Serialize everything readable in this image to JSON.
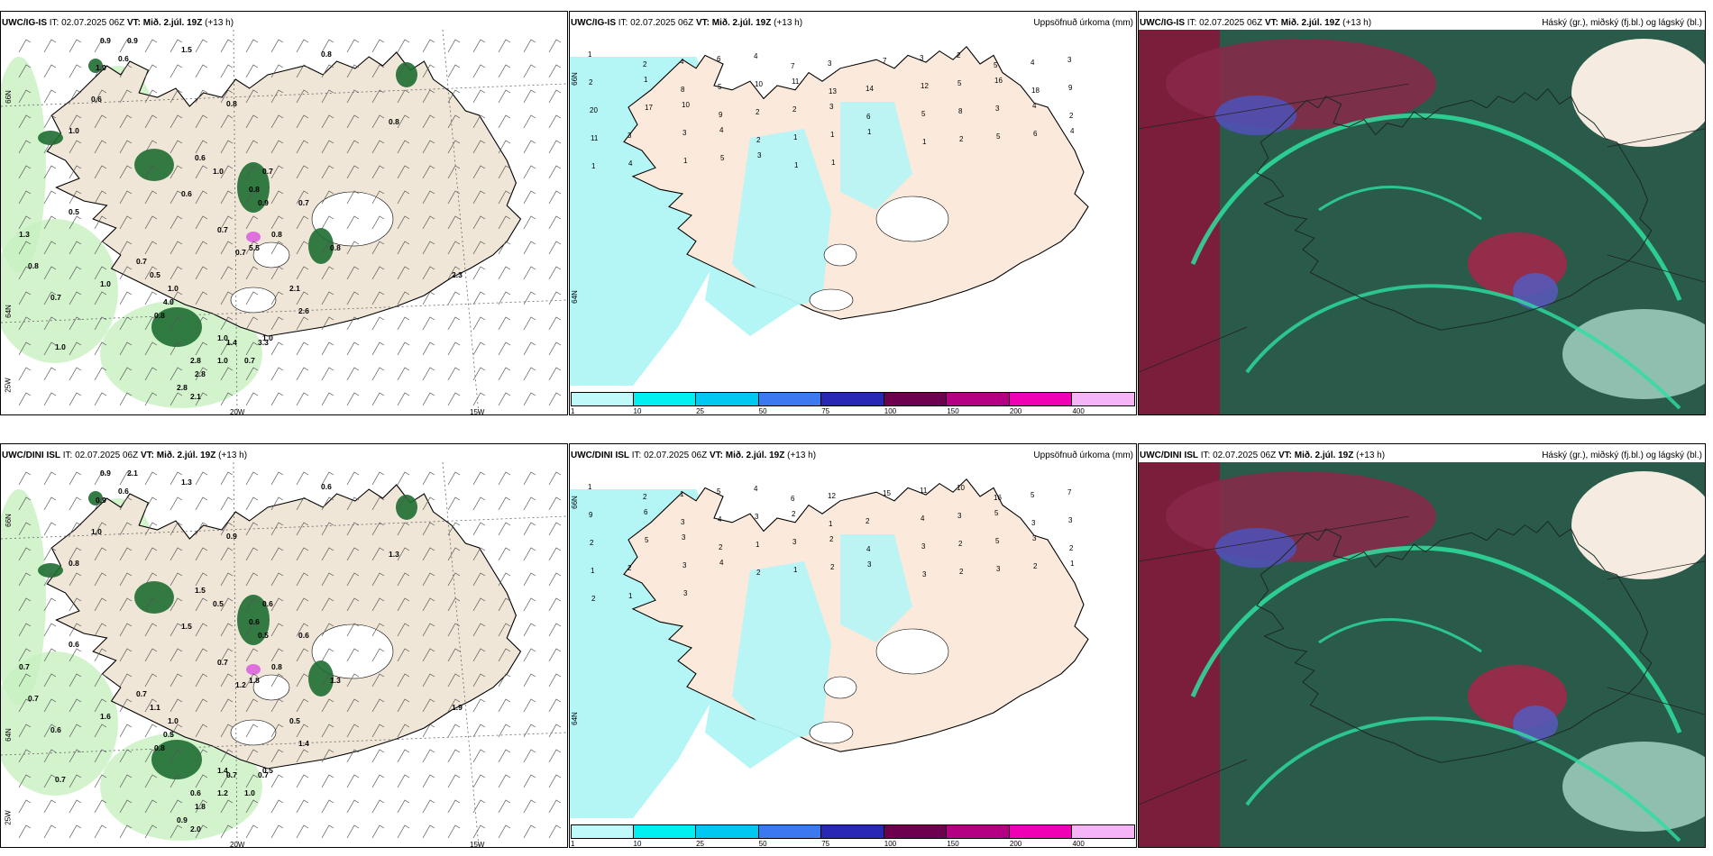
{
  "panels": [
    {
      "model": "UWC/IG-IS",
      "it": "IT: 02.07.2025 06Z",
      "vt_label": "VT:",
      "vt": "Mið. 2.júl. 19Z",
      "lead": "(+13 h)",
      "right": ""
    },
    {
      "model": "UWC/IG-IS",
      "it": "IT: 02.07.2025 06Z",
      "vt_label": "VT:",
      "vt": "Mið. 2.júl. 19Z",
      "lead": "(+13 h)",
      "right": "Uppsöfnuð úrkoma (mm)"
    },
    {
      "model": "UWC/IG-IS",
      "it": "IT: 02.07.2025 06Z",
      "vt_label": "VT:",
      "vt": "Mið. 2.júl. 19Z",
      "lead": "(+13 h)",
      "right": "Háský (gr.), miðský (fj.bl.) og lágský (bl.)"
    },
    {
      "model": "UWC/DINI ISL",
      "it": "IT: 02.07.2025 06Z",
      "vt_label": "VT:",
      "vt": "Mið. 2.júl. 19Z",
      "lead": "(+13 h)",
      "right": ""
    },
    {
      "model": "UWC/DINI ISL",
      "it": "IT: 02.07.2025 06Z",
      "vt_label": "VT:",
      "vt": "Mið. 2.júl. 19Z",
      "lead": "(+13 h)",
      "right": "Uppsöfnuð úrkoma (mm)"
    },
    {
      "model": "UWC/DINI ISL",
      "it": "IT: 02.07.2025 06Z",
      "vt_label": "VT:",
      "vt": "Mið. 2.júl. 19Z",
      "lead": "(+13 h)",
      "right": "Háský (gr.), miðský (fj.bl.) og lágský (bl.)"
    }
  ],
  "axes": {
    "lat66": "66N",
    "lat64": "64N",
    "lon25": "25W",
    "lon20": "20W",
    "lon15": "15W"
  },
  "colorbar": {
    "ticks": [
      "1",
      "10",
      "25",
      "50",
      "75",
      "100",
      "150",
      "200",
      "400"
    ],
    "colors": [
      "#bff9f9",
      "#00f0f0",
      "#00c8f0",
      "#3c78f0",
      "#2828b4",
      "#6e0050",
      "#b40082",
      "#f000b4",
      "#f5b4f5"
    ]
  },
  "precip_labels_top": [
    "0.9",
    "0.9",
    "1.5",
    "0.8",
    "0.6",
    "1.0",
    "0.6",
    "0.8",
    "0.8",
    "1.0",
    "0.6",
    "1.0",
    "0.8",
    "0.7",
    "0.6",
    "0.5",
    "1.3",
    "0.9",
    "0.8",
    "0.7",
    "0.5",
    "1.0",
    "4.0",
    "0.7",
    "5.5",
    "0.7",
    "0.8",
    "0.7",
    "1.0",
    "0.8",
    "2.6",
    "0.8",
    "2.8",
    "1.0",
    "0.7",
    "2.1",
    "1.0",
    "1.0",
    "0.7",
    "2.8",
    "1.4",
    "2.8",
    "2.1",
    "1.0",
    "3.3",
    "2.3"
  ],
  "precip_labels_bot": [
    "0.9",
    "2.1",
    "1.3",
    "0.6",
    "0.6",
    "0.9",
    "1.0",
    "0.9",
    "1.3",
    "0.8",
    "1.5",
    "0.5",
    "0.6",
    "0.6",
    "1.5",
    "0.6",
    "0.7",
    "0.5",
    "0.7",
    "0.7",
    "1.1",
    "1.0",
    "0.5",
    "0.6",
    "1.8",
    "0.7",
    "0.8",
    "1.2",
    "1.6",
    "0.8",
    "1.4",
    "1.3",
    "0.6",
    "1.2",
    "1.0",
    "0.5",
    "0.5",
    "0.7",
    "0.6",
    "1.8",
    "0.7",
    "0.9",
    "2.0",
    "1.4",
    "0.7",
    "1.9"
  ],
  "accum_labels_top": [
    "1",
    "2",
    "4",
    "6",
    "4",
    "7",
    "3",
    "7",
    "3",
    "2",
    "5",
    "4",
    "3",
    "2",
    "1",
    "8",
    "5",
    "10",
    "11",
    "13",
    "14",
    "12",
    "5",
    "16",
    "18",
    "9",
    "20",
    "17",
    "10",
    "9",
    "2",
    "2",
    "3",
    "6",
    "5",
    "8",
    "3",
    "4",
    "2",
    "11",
    "3",
    "3",
    "4",
    "2",
    "1",
    "1",
    "1",
    "1",
    "2",
    "5",
    "6",
    "4",
    "1",
    "4",
    "1",
    "5",
    "3",
    "1",
    "1"
  ],
  "accum_labels_bot": [
    "1",
    "2",
    "1",
    "5",
    "4",
    "6",
    "12",
    "15",
    "11",
    "10",
    "16",
    "5",
    "7",
    "9",
    "6",
    "3",
    "4",
    "3",
    "2",
    "1",
    "2",
    "4",
    "3",
    "5",
    "3",
    "3",
    "2",
    "5",
    "3",
    "2",
    "1",
    "3",
    "2",
    "4",
    "3",
    "2",
    "5",
    "3",
    "2",
    "1",
    "2",
    "3",
    "4",
    "2",
    "1",
    "2",
    "3",
    "3",
    "2",
    "3",
    "2",
    "1",
    "2",
    "1",
    "3"
  ]
}
